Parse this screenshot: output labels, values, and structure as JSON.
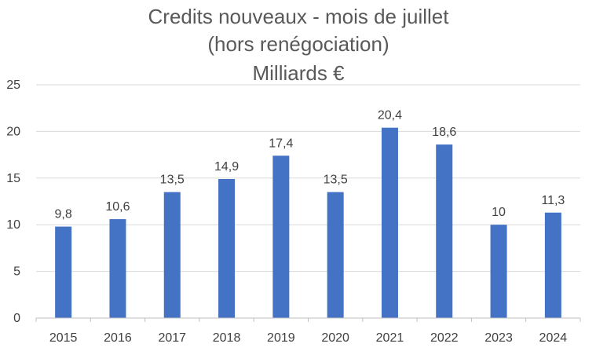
{
  "chart_data": {
    "type": "bar",
    "title_lines": [
      "Credits nouveaux - mois de juillet",
      "(hors renégociation)",
      "Milliards €"
    ],
    "categories": [
      "2015",
      "2016",
      "2017",
      "2018",
      "2019",
      "2020",
      "2021",
      "2022",
      "2023",
      "2024"
    ],
    "values": [
      9.8,
      10.6,
      13.5,
      14.9,
      17.4,
      13.5,
      20.4,
      18.6,
      10,
      11.3
    ],
    "data_labels": [
      "9,8",
      "10,6",
      "13,5",
      "14,9",
      "17,4",
      "13,5",
      "20,4",
      "18,6",
      "10",
      "11,3"
    ],
    "y_ticks": [
      "0",
      "5",
      "10",
      "15",
      "20",
      "25"
    ],
    "ylim": [
      0,
      25
    ],
    "grid": true,
    "legend": "none",
    "colors": {
      "bar": "#4472c4"
    }
  }
}
